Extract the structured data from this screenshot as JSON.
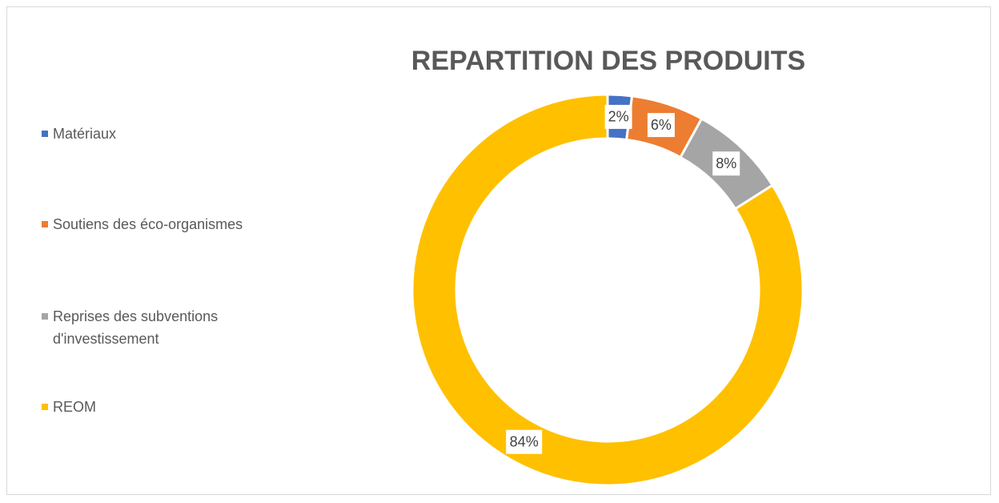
{
  "chart_data": {
    "type": "donut",
    "title": "REPARTITION DES PRODUITS",
    "categories": [
      "Matériaux",
      "Soutiens des éco-organismes",
      "Reprises des subventions d'investissement",
      "REOM"
    ],
    "values": [
      2,
      6,
      8,
      84
    ],
    "value_labels": [
      "2%",
      "6%",
      "8%",
      "84%"
    ],
    "colors": [
      "#4472c4",
      "#ed7d31",
      "#a5a5a5",
      "#ffc000"
    ],
    "legend": "left"
  }
}
